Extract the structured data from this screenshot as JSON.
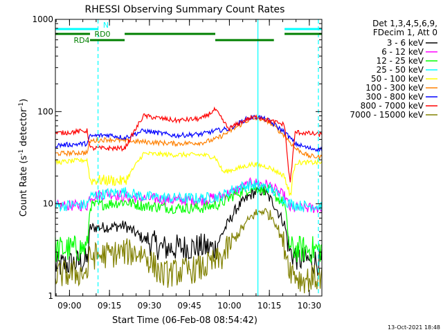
{
  "chart_data": {
    "type": "line",
    "title": "RHESSI Observing Summary Count Rates",
    "xlabel": "Start Time (06-Feb-08 08:54:42)",
    "ylabel_main": "Count Rate (s",
    "ylabel_mid": " detector",
    "ylabel_end": ")",
    "ylabel_sup": "-1",
    "yscale": "log",
    "ylim": [
      1,
      1000
    ],
    "y_ticks": [
      {
        "v": 1,
        "label": "1"
      },
      {
        "v": 10,
        "label": "10"
      },
      {
        "v": 100,
        "label": "100"
      },
      {
        "v": 1000,
        "label": "1000"
      }
    ],
    "x_ticks": [
      {
        "t": 5.3,
        "label": "09:00"
      },
      {
        "t": 20.3,
        "label": "09:15"
      },
      {
        "t": 35.3,
        "label": "09:30"
      },
      {
        "t": 50.3,
        "label": "09:45"
      },
      {
        "t": 65.3,
        "label": "10:00"
      },
      {
        "t": 80.3,
        "label": "10:15"
      },
      {
        "t": 95.3,
        "label": "10:30"
      }
    ],
    "x_range_minutes": [
      0,
      100
    ],
    "legend_header": [
      "Det 1,3,4,5,6,9,",
      "FDecim 1, Att 0"
    ],
    "series": [
      {
        "name": "3 - 6 keV",
        "color": "#000000",
        "points": [
          [
            0,
            2.1
          ],
          [
            12,
            2.4
          ],
          [
            13,
            5.5
          ],
          [
            20,
            5.6
          ],
          [
            26,
            5.8
          ],
          [
            33,
            4.2
          ],
          [
            40,
            3.3
          ],
          [
            55,
            3.4
          ],
          [
            60,
            3.3
          ],
          [
            63,
            5
          ],
          [
            68,
            9
          ],
          [
            74,
            13
          ],
          [
            78,
            14
          ],
          [
            82,
            10
          ],
          [
            86,
            6
          ],
          [
            88,
            3
          ],
          [
            92,
            2.5
          ],
          [
            100,
            2.3
          ]
        ]
      },
      {
        "name": "6 - 12 keV",
        "color": "#ff00ff",
        "points": [
          [
            0,
            9.5
          ],
          [
            12,
            9.6
          ],
          [
            13,
            12
          ],
          [
            20,
            13
          ],
          [
            26,
            12
          ],
          [
            33,
            11.5
          ],
          [
            45,
            11
          ],
          [
            55,
            11
          ],
          [
            62,
            12
          ],
          [
            68,
            14
          ],
          [
            74,
            17
          ],
          [
            80,
            16
          ],
          [
            86,
            12
          ],
          [
            88,
            9
          ],
          [
            92,
            9
          ],
          [
            100,
            9
          ]
        ]
      },
      {
        "name": "12 - 25 keV",
        "color": "#00ff00",
        "points": [
          [
            0,
            3.2
          ],
          [
            12,
            3.3
          ],
          [
            13,
            9.5
          ],
          [
            20,
            10
          ],
          [
            26,
            10.5
          ],
          [
            33,
            9.5
          ],
          [
            45,
            9
          ],
          [
            55,
            9
          ],
          [
            62,
            10
          ],
          [
            68,
            13
          ],
          [
            74,
            15
          ],
          [
            80,
            14
          ],
          [
            86,
            10
          ],
          [
            88,
            3.2
          ],
          [
            92,
            3.2
          ],
          [
            100,
            3.2
          ]
        ]
      },
      {
        "name": "25 - 50 keV",
        "color": "#00ffff",
        "points": [
          [
            0,
            9.5
          ],
          [
            12,
            9.8
          ],
          [
            13,
            12
          ],
          [
            20,
            13
          ],
          [
            26,
            13.5
          ],
          [
            33,
            12
          ],
          [
            45,
            11.5
          ],
          [
            55,
            11.5
          ],
          [
            62,
            12
          ],
          [
            68,
            15
          ],
          [
            74,
            16
          ],
          [
            80,
            15
          ],
          [
            86,
            11
          ],
          [
            88,
            10
          ],
          [
            92,
            9.5
          ],
          [
            100,
            9.5
          ]
        ]
      },
      {
        "name": "50 - 100 keV",
        "color": "#ffff00",
        "points": [
          [
            0,
            28
          ],
          [
            12,
            30
          ],
          [
            13,
            18
          ],
          [
            20,
            18
          ],
          [
            26,
            17.5
          ],
          [
            33,
            35
          ],
          [
            45,
            34
          ],
          [
            55,
            34
          ],
          [
            60,
            32
          ],
          [
            63,
            22
          ],
          [
            68,
            24
          ],
          [
            74,
            27
          ],
          [
            80,
            25
          ],
          [
            86,
            20
          ],
          [
            88,
            12
          ],
          [
            90,
            28
          ],
          [
            100,
            28
          ]
        ]
      },
      {
        "name": "100 - 300 keV",
        "color": "#ff8000",
        "points": [
          [
            0,
            35
          ],
          [
            12,
            36
          ],
          [
            13,
            48
          ],
          [
            20,
            50
          ],
          [
            26,
            48
          ],
          [
            33,
            47
          ],
          [
            45,
            45
          ],
          [
            55,
            46
          ],
          [
            60,
            50
          ],
          [
            65,
            60
          ],
          [
            72,
            80
          ],
          [
            76,
            85
          ],
          [
            80,
            78
          ],
          [
            86,
            55
          ],
          [
            90,
            40
          ],
          [
            95,
            33
          ],
          [
            100,
            32
          ]
        ]
      },
      {
        "name": "300 - 800 keV",
        "color": "#0000ff",
        "points": [
          [
            0,
            43
          ],
          [
            12,
            45
          ],
          [
            13,
            54
          ],
          [
            20,
            56
          ],
          [
            26,
            52
          ],
          [
            33,
            62
          ],
          [
            45,
            55
          ],
          [
            55,
            57
          ],
          [
            60,
            62
          ],
          [
            65,
            65
          ],
          [
            72,
            84
          ],
          [
            76,
            88
          ],
          [
            80,
            80
          ],
          [
            86,
            60
          ],
          [
            90,
            45
          ],
          [
            95,
            40
          ],
          [
            100,
            39
          ]
        ]
      },
      {
        "name": "800 - 7000 keV",
        "color": "#ff0000",
        "points": [
          [
            0,
            58
          ],
          [
            12,
            62
          ],
          [
            13,
            40
          ],
          [
            20,
            40
          ],
          [
            26,
            40
          ],
          [
            33,
            90
          ],
          [
            45,
            80
          ],
          [
            55,
            84
          ],
          [
            60,
            105
          ],
          [
            65,
            65
          ],
          [
            72,
            83
          ],
          [
            76,
            88
          ],
          [
            80,
            80
          ],
          [
            86,
            72
          ],
          [
            88,
            16
          ],
          [
            90,
            60
          ],
          [
            100,
            56
          ]
        ]
      },
      {
        "name": "7000 - 15000 keV",
        "color": "#808000",
        "points": [
          [
            0,
            1.7
          ],
          [
            12,
            1.8
          ],
          [
            13,
            2.7
          ],
          [
            20,
            2.8
          ],
          [
            26,
            3.0
          ],
          [
            33,
            2.9
          ],
          [
            40,
            1.7
          ],
          [
            55,
            2.0
          ],
          [
            62,
            2.5
          ],
          [
            68,
            4.5
          ],
          [
            74,
            7.5
          ],
          [
            78,
            8.5
          ],
          [
            82,
            7
          ],
          [
            86,
            3.5
          ],
          [
            88,
            2.0
          ],
          [
            92,
            1.5
          ],
          [
            100,
            1.6
          ]
        ]
      }
    ],
    "status_bars": [
      {
        "label": "N",
        "color": "#00ffff",
        "segments": [
          [
            0,
            16
          ],
          [
            86,
            100
          ]
        ]
      },
      {
        "label": "RD0",
        "color": "#008000",
        "segments": [
          [
            0,
            13
          ],
          [
            26,
            60
          ],
          [
            86,
            100
          ]
        ]
      },
      {
        "label": "RD4",
        "color": "#008000",
        "segments": [
          [
            13,
            26
          ],
          [
            60,
            82
          ]
        ]
      }
    ],
    "vlines": [
      {
        "t": 16,
        "color": "#00ffff",
        "style": "dashed"
      },
      {
        "t": 76,
        "color": "#00ffff",
        "style": "solid"
      },
      {
        "t": 98.7,
        "color": "#00ffff",
        "style": "dashed"
      }
    ],
    "footer_date": "13-Oct-2021 18:48"
  }
}
